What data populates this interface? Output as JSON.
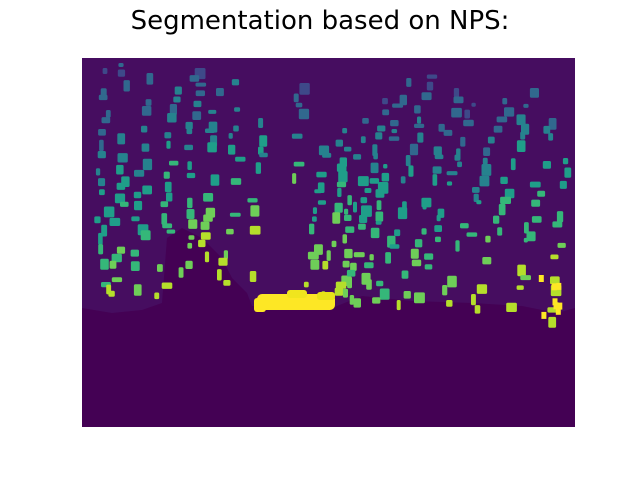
{
  "figure": {
    "title": "Segmentation based on NPS:"
  },
  "image": {
    "description_colormap": "viridis",
    "axes_visible": false,
    "colors": {
      "background": "#440154",
      "dark_purple": "#48186a",
      "indigo": "#3e4989",
      "blue": "#31688e",
      "teal": "#26828e",
      "green_teal": "#1f9e89",
      "green": "#35b779",
      "light_green": "#6ece58",
      "yellow_green": "#b5de2b",
      "yellow": "#fde725"
    }
  }
}
